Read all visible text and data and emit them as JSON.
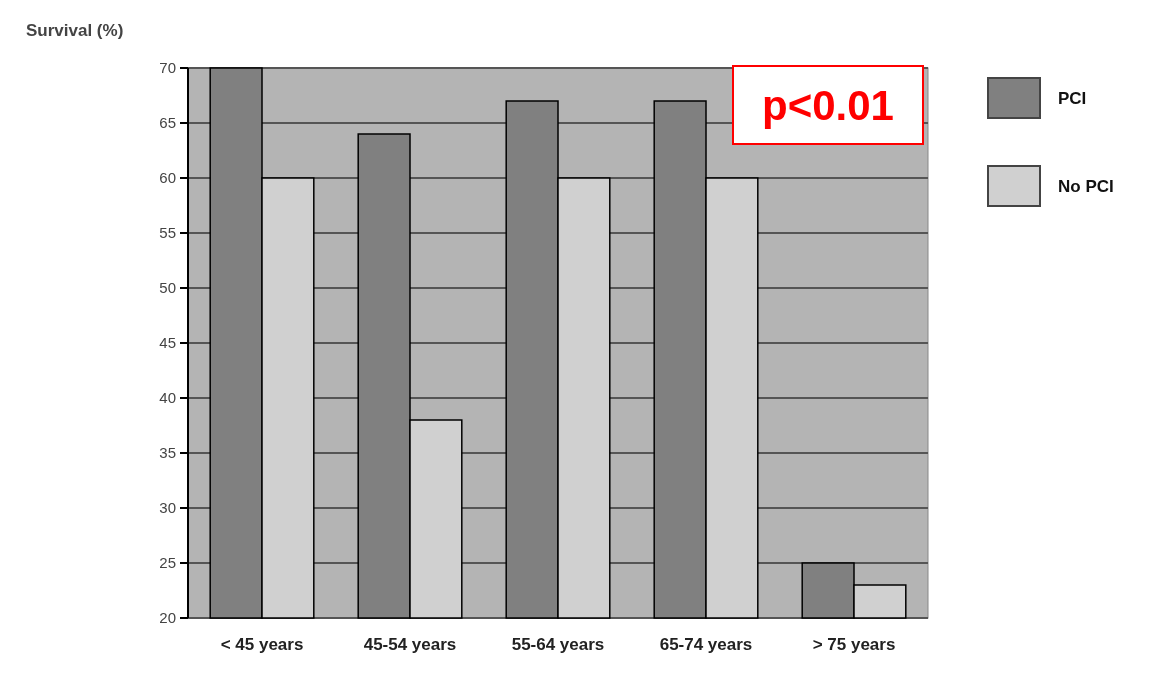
{
  "chart_data": {
    "type": "bar",
    "ylabel": "Survival (%)",
    "categories": [
      "< 45 years",
      "45-54 years",
      "55-64 years",
      "65-74 years",
      "> 75 years"
    ],
    "series": [
      {
        "name": "PCI",
        "color": "#808080",
        "values": [
          70,
          64,
          67,
          67,
          25
        ]
      },
      {
        "name": "No PCI",
        "color": "#d0d0d0",
        "values": [
          60,
          38,
          60,
          60,
          23
        ]
      }
    ],
    "ylim": [
      20,
      70
    ],
    "yticks": [
      20,
      25,
      30,
      35,
      40,
      45,
      50,
      55,
      60,
      65,
      70
    ],
    "grid": "y",
    "legend": "right",
    "annotations": [
      "p<0.01"
    ]
  }
}
